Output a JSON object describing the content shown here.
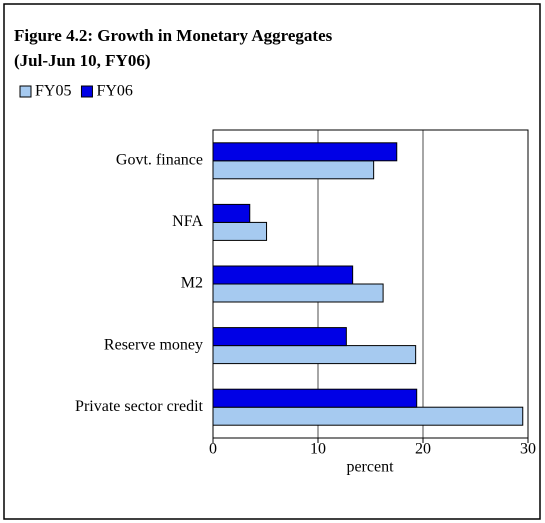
{
  "chart_data": {
    "type": "bar",
    "orientation": "horizontal",
    "title": "Figure 4.2: Growth in Monetary Aggregates",
    "subtitle": "(Jul-Jun 10, FY06)",
    "x_label": "percent",
    "categories": [
      "Govt. finance",
      "NFA",
      "M2",
      "Reserve money",
      "Private sector credit"
    ],
    "series": [
      {
        "name": "FY05",
        "color": "#a6caf0",
        "values": [
          15.3,
          5.1,
          16.2,
          19.3,
          29.5
        ]
      },
      {
        "name": "FY06",
        "color": "#0000e6",
        "values": [
          17.5,
          3.5,
          13.3,
          12.7,
          19.4
        ]
      }
    ],
    "xlim": [
      0,
      30
    ],
    "xticks": [
      0,
      10,
      20,
      30
    ],
    "grid": true,
    "legend": "top-left"
  }
}
